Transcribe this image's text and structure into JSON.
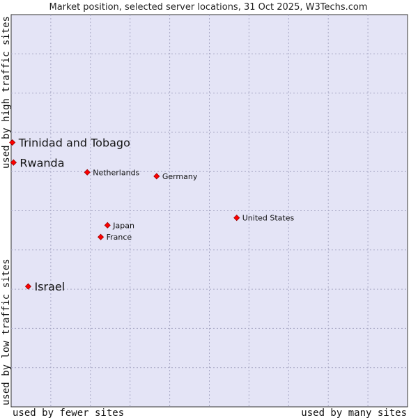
{
  "chart_data": {
    "type": "scatter",
    "title": "Market position, selected server locations, 31 Oct 2025, W3Techs.com",
    "xlabel_left": "used by fewer sites",
    "xlabel_right": "used by many sites",
    "ylabel_bottom": "used by low traffic sites",
    "ylabel_top": "used by high traffic sites",
    "xlim": [
      0,
      100
    ],
    "ylim": [
      0,
      100
    ],
    "grid": true,
    "colors": {
      "plot_bg": "#e4e4f6",
      "grid": "#a7a7c4",
      "border": "#333333",
      "marker": "#ff0000",
      "marker_edge": "#990000"
    },
    "points": [
      {
        "label": "Trinidad and Tobago",
        "x": 0.3,
        "y": 67.4,
        "size": "large"
      },
      {
        "label": "Rwanda",
        "x": 0.6,
        "y": 62.3,
        "size": "large"
      },
      {
        "label": "Netherlands",
        "x": 19.2,
        "y": 59.8,
        "size": "small"
      },
      {
        "label": "Germany",
        "x": 36.7,
        "y": 58.8,
        "size": "small"
      },
      {
        "label": "United States",
        "x": 56.9,
        "y": 48.2,
        "size": "small"
      },
      {
        "label": "Japan",
        "x": 24.3,
        "y": 46.3,
        "size": "small"
      },
      {
        "label": "France",
        "x": 22.6,
        "y": 43.3,
        "size": "small"
      },
      {
        "label": "Israel",
        "x": 4.3,
        "y": 30.7,
        "size": "large"
      }
    ]
  }
}
